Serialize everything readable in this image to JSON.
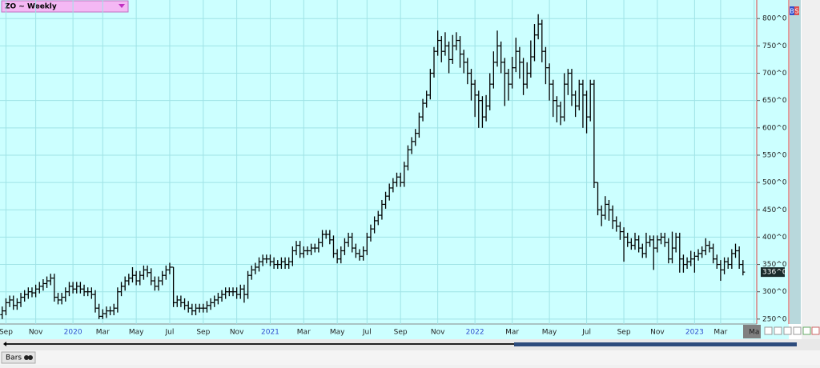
{
  "chart_data": {
    "type": "ohlc",
    "title": "ZO ~ Weekly",
    "color": "#000000",
    "background": "#ccffff",
    "grid": true,
    "grid_color": "#9fe3e6",
    "year_color": "#2f4fd0",
    "xlim": [
      -0.6,
      202.7
    ],
    "ylim": [
      241,
      834
    ],
    "yticks": [
      {
        "value": 250,
        "label": "250^0"
      },
      {
        "value": 300,
        "label": "300^0"
      },
      {
        "value": 350,
        "label": "350^0"
      },
      {
        "value": 400,
        "label": "400^0"
      },
      {
        "value": 450,
        "label": "450^0"
      },
      {
        "value": 500,
        "label": "500^0"
      },
      {
        "value": 550,
        "label": "550^0"
      },
      {
        "value": 600,
        "label": "600^0"
      },
      {
        "value": 650,
        "label": "650^0"
      },
      {
        "value": 700,
        "label": "700^0"
      },
      {
        "value": 750,
        "label": "750^0"
      },
      {
        "value": 800,
        "label": "800^0"
      }
    ],
    "xticks": [
      {
        "value": 1,
        "label": "Sep"
      },
      {
        "value": 9,
        "label": "Nov"
      },
      {
        "value": 19,
        "label": "2020"
      },
      {
        "value": 27,
        "label": "Mar"
      },
      {
        "value": 36,
        "label": "May"
      },
      {
        "value": 45,
        "label": "Jul"
      },
      {
        "value": 54,
        "label": "Sep"
      },
      {
        "value": 63,
        "label": "Nov"
      },
      {
        "value": 72,
        "label": "2021"
      },
      {
        "value": 81,
        "label": "Mar"
      },
      {
        "value": 90,
        "label": "May"
      },
      {
        "value": 98,
        "label": "Jul"
      },
      {
        "value": 107,
        "label": "Sep"
      },
      {
        "value": 117,
        "label": "Nov"
      },
      {
        "value": 127,
        "label": "2022"
      },
      {
        "value": 137,
        "label": "Mar"
      },
      {
        "value": 147,
        "label": "May"
      },
      {
        "value": 157,
        "label": "Jul"
      },
      {
        "value": 167,
        "label": "Sep"
      },
      {
        "value": 176,
        "label": "Nov"
      },
      {
        "value": 186,
        "label": "2023"
      },
      {
        "value": 193,
        "label": "Mar"
      },
      {
        "value": 202,
        "label": "Ma"
      }
    ],
    "last_price": {
      "value": 336,
      "label": "336^0"
    },
    "bars": [
      [
        258,
        273,
        250,
        265
      ],
      [
        265,
        288,
        257,
        280
      ],
      [
        280,
        293,
        272,
        285
      ],
      [
        285,
        293,
        267,
        275
      ],
      [
        275,
        288,
        267,
        280
      ],
      [
        280,
        298,
        272,
        290
      ],
      [
        290,
        303,
        282,
        295
      ],
      [
        295,
        308,
        287,
        300
      ],
      [
        300,
        308,
        290,
        298
      ],
      [
        298,
        313,
        290,
        305
      ],
      [
        305,
        318,
        297,
        310
      ],
      [
        310,
        323,
        302,
        315
      ],
      [
        315,
        328,
        307,
        320
      ],
      [
        320,
        333,
        312,
        325
      ],
      [
        325,
        333,
        282,
        290
      ],
      [
        290,
        298,
        277,
        285
      ],
      [
        285,
        298,
        277,
        290
      ],
      [
        290,
        308,
        282,
        300
      ],
      [
        300,
        318,
        292,
        310
      ],
      [
        310,
        318,
        297,
        305
      ],
      [
        305,
        318,
        297,
        310
      ],
      [
        310,
        318,
        297,
        305
      ],
      [
        305,
        313,
        292,
        300
      ],
      [
        300,
        308,
        292,
        300
      ],
      [
        300,
        308,
        287,
        295
      ],
      [
        295,
        303,
        262,
        270
      ],
      [
        270,
        278,
        250,
        255
      ],
      [
        255,
        268,
        250,
        260
      ],
      [
        260,
        273,
        252,
        265
      ],
      [
        265,
        273,
        257,
        265
      ],
      [
        265,
        278,
        257,
        270
      ],
      [
        270,
        308,
        262,
        300
      ],
      [
        300,
        318,
        292,
        310
      ],
      [
        310,
        328,
        302,
        320
      ],
      [
        320,
        333,
        312,
        325
      ],
      [
        325,
        345,
        317,
        330
      ],
      [
        330,
        338,
        312,
        320
      ],
      [
        320,
        338,
        312,
        330
      ],
      [
        330,
        348,
        322,
        340
      ],
      [
        340,
        348,
        327,
        335
      ],
      [
        335,
        343,
        312,
        320
      ],
      [
        320,
        328,
        302,
        310
      ],
      [
        310,
        328,
        302,
        320
      ],
      [
        320,
        338,
        312,
        330
      ],
      [
        330,
        348,
        322,
        340
      ],
      [
        340,
        353,
        332,
        345
      ],
      [
        345,
        345,
        272,
        280
      ],
      [
        280,
        293,
        272,
        285
      ],
      [
        285,
        293,
        272,
        280
      ],
      [
        280,
        288,
        267,
        275
      ],
      [
        275,
        283,
        262,
        270
      ],
      [
        270,
        278,
        257,
        265
      ],
      [
        265,
        278,
        257,
        270
      ],
      [
        270,
        278,
        262,
        270
      ],
      [
        270,
        278,
        262,
        270
      ],
      [
        270,
        283,
        262,
        275
      ],
      [
        275,
        288,
        267,
        280
      ],
      [
        280,
        293,
        272,
        285
      ],
      [
        285,
        298,
        277,
        290
      ],
      [
        290,
        303,
        282,
        295
      ],
      [
        295,
        308,
        287,
        300
      ],
      [
        300,
        308,
        292,
        300
      ],
      [
        300,
        308,
        292,
        300
      ],
      [
        300,
        308,
        287,
        295
      ],
      [
        295,
        313,
        287,
        305
      ],
      [
        305,
        313,
        280,
        295
      ],
      [
        295,
        338,
        287,
        330
      ],
      [
        330,
        348,
        322,
        340
      ],
      [
        340,
        353,
        332,
        345
      ],
      [
        345,
        363,
        337,
        355
      ],
      [
        355,
        368,
        347,
        360
      ],
      [
        360,
        368,
        352,
        360
      ],
      [
        360,
        368,
        347,
        355
      ],
      [
        355,
        363,
        342,
        350
      ],
      [
        350,
        358,
        342,
        350
      ],
      [
        350,
        363,
        342,
        355
      ],
      [
        355,
        363,
        342,
        350
      ],
      [
        350,
        363,
        342,
        355
      ],
      [
        355,
        383,
        347,
        375
      ],
      [
        375,
        393,
        367,
        385
      ],
      [
        385,
        393,
        362,
        370
      ],
      [
        370,
        383,
        362,
        375
      ],
      [
        375,
        383,
        367,
        375
      ],
      [
        375,
        388,
        367,
        380
      ],
      [
        380,
        388,
        372,
        380
      ],
      [
        380,
        398,
        372,
        390
      ],
      [
        390,
        413,
        382,
        405
      ],
      [
        405,
        413,
        397,
        405
      ],
      [
        405,
        413,
        387,
        395
      ],
      [
        395,
        403,
        362,
        370
      ],
      [
        370,
        378,
        352,
        360
      ],
      [
        360,
        383,
        352,
        375
      ],
      [
        375,
        398,
        367,
        390
      ],
      [
        390,
        408,
        382,
        400
      ],
      [
        400,
        408,
        372,
        380
      ],
      [
        380,
        388,
        362,
        370
      ],
      [
        370,
        378,
        357,
        365
      ],
      [
        365,
        383,
        357,
        375
      ],
      [
        375,
        408,
        367,
        400
      ],
      [
        400,
        423,
        392,
        415
      ],
      [
        415,
        438,
        407,
        430
      ],
      [
        430,
        448,
        422,
        440
      ],
      [
        440,
        468,
        432,
        460
      ],
      [
        460,
        483,
        452,
        475
      ],
      [
        475,
        498,
        467,
        490
      ],
      [
        490,
        508,
        482,
        500
      ],
      [
        500,
        518,
        492,
        510
      ],
      [
        510,
        518,
        492,
        500
      ],
      [
        500,
        538,
        492,
        530
      ],
      [
        530,
        568,
        522,
        560
      ],
      [
        560,
        583,
        552,
        575
      ],
      [
        575,
        598,
        567,
        590
      ],
      [
        590,
        628,
        582,
        620
      ],
      [
        620,
        653,
        612,
        645
      ],
      [
        645,
        668,
        637,
        660
      ],
      [
        660,
        708,
        652,
        700
      ],
      [
        700,
        748,
        692,
        740
      ],
      [
        740,
        778,
        732,
        760
      ],
      [
        760,
        768,
        720,
        740
      ],
      [
        740,
        775,
        732,
        750
      ],
      [
        750,
        758,
        700,
        725
      ],
      [
        725,
        770,
        717,
        750
      ],
      [
        750,
        775,
        742,
        760
      ],
      [
        760,
        768,
        710,
        735
      ],
      [
        735,
        743,
        700,
        720
      ],
      [
        720,
        728,
        680,
        700
      ],
      [
        700,
        708,
        650,
        680
      ],
      [
        680,
        688,
        620,
        660
      ],
      [
        660,
        668,
        600,
        650
      ],
      [
        650,
        658,
        600,
        620
      ],
      [
        620,
        660,
        612,
        640
      ],
      [
        640,
        700,
        632,
        680
      ],
      [
        680,
        740,
        672,
        720
      ],
      [
        720,
        778,
        712,
        750
      ],
      [
        750,
        758,
        700,
        720
      ],
      [
        720,
        728,
        640,
        700
      ],
      [
        700,
        708,
        650,
        680
      ],
      [
        680,
        730,
        672,
        710
      ],
      [
        710,
        765,
        702,
        740
      ],
      [
        740,
        748,
        690,
        720
      ],
      [
        720,
        728,
        660,
        680
      ],
      [
        680,
        720,
        672,
        700
      ],
      [
        700,
        760,
        692,
        730
      ],
      [
        730,
        790,
        722,
        770
      ],
      [
        770,
        808,
        762,
        790
      ],
      [
        790,
        798,
        720,
        740
      ],
      [
        740,
        748,
        680,
        710
      ],
      [
        710,
        718,
        650,
        680
      ],
      [
        680,
        688,
        620,
        650
      ],
      [
        650,
        658,
        610,
        640
      ],
      [
        640,
        648,
        605,
        620
      ],
      [
        620,
        700,
        612,
        680
      ],
      [
        680,
        708,
        660,
        700
      ],
      [
        700,
        708,
        640,
        660
      ],
      [
        660,
        668,
        620,
        640
      ],
      [
        640,
        688,
        632,
        680
      ],
      [
        680,
        688,
        600,
        660
      ],
      [
        660,
        668,
        590,
        620
      ],
      [
        620,
        688,
        612,
        680
      ],
      [
        680,
        688,
        490,
        500
      ],
      [
        500,
        500,
        440,
        450
      ],
      [
        450,
        458,
        420,
        440
      ],
      [
        440,
        475,
        432,
        460
      ],
      [
        460,
        468,
        430,
        450
      ],
      [
        450,
        458,
        415,
        430
      ],
      [
        430,
        438,
        410,
        420
      ],
      [
        420,
        428,
        395,
        410
      ],
      [
        410,
        418,
        355,
        400
      ],
      [
        400,
        408,
        382,
        390
      ],
      [
        390,
        398,
        377,
        385
      ],
      [
        385,
        408,
        377,
        395
      ],
      [
        395,
        403,
        372,
        380
      ],
      [
        380,
        388,
        362,
        370
      ],
      [
        370,
        408,
        362,
        390
      ],
      [
        390,
        403,
        382,
        395
      ],
      [
        395,
        403,
        340,
        380
      ],
      [
        380,
        403,
        372,
        395
      ],
      [
        395,
        408,
        387,
        400
      ],
      [
        400,
        408,
        382,
        390
      ],
      [
        390,
        398,
        352,
        360
      ],
      [
        360,
        410,
        352,
        380
      ],
      [
        380,
        408,
        372,
        400
      ],
      [
        400,
        408,
        335,
        360
      ],
      [
        360,
        368,
        335,
        350
      ],
      [
        350,
        363,
        342,
        355
      ],
      [
        355,
        375,
        347,
        360
      ],
      [
        360,
        373,
        335,
        365
      ],
      [
        365,
        378,
        357,
        370
      ],
      [
        370,
        383,
        362,
        375
      ],
      [
        375,
        398,
        367,
        385
      ],
      [
        385,
        393,
        372,
        380
      ],
      [
        380,
        388,
        352,
        360
      ],
      [
        360,
        368,
        342,
        350
      ],
      [
        350,
        358,
        320,
        340
      ],
      [
        340,
        363,
        332,
        355
      ],
      [
        355,
        363,
        342,
        350
      ],
      [
        350,
        378,
        342,
        370
      ],
      [
        370,
        388,
        362,
        375
      ],
      [
        375,
        383,
        342,
        350
      ],
      [
        350,
        358,
        330,
        336
      ]
    ]
  },
  "ui": {
    "bars_tab": "Bars",
    "buy": "B",
    "sell": "S"
  }
}
